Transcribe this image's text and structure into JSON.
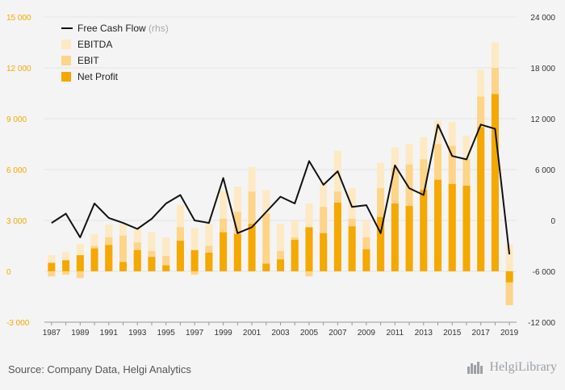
{
  "chart_data": {
    "type": "bar",
    "categories": [
      "1987",
      "1988",
      "1989",
      "1990",
      "1991",
      "1992",
      "1993",
      "1994",
      "1995",
      "1996",
      "1997",
      "1998",
      "1999",
      "2000",
      "2001",
      "2002",
      "2003",
      "2004",
      "2005",
      "2006",
      "2007",
      "2008",
      "2009",
      "2010",
      "2011",
      "2012",
      "2013",
      "2014",
      "2015",
      "2016",
      "2017",
      "2018",
      "2019"
    ],
    "x_tick_labels": [
      "1987",
      "1989",
      "1991",
      "1993",
      "1995",
      "1997",
      "1999",
      "2001",
      "2003",
      "2005",
      "2007",
      "2009",
      "2011",
      "2013",
      "2015",
      "2017",
      "2019"
    ],
    "y_left_ticks": [
      "15 000",
      "12 000",
      "9 000",
      "6 000",
      "3 000",
      "0",
      "-3 000"
    ],
    "y_right_ticks": [
      "24 000",
      "18 000",
      "12 000",
      "6 000",
      "0",
      "-6 000",
      "-12 000"
    ],
    "ylim_left": [
      -3000,
      15000
    ],
    "ylim_right": [
      -12000,
      24000
    ],
    "series": [
      {
        "name": "EBITDA",
        "type": "bar",
        "axis": "left",
        "color": "#fde9c4",
        "values": [
          950,
          1150,
          1600,
          2200,
          2750,
          2800,
          2500,
          2300,
          2000,
          3900,
          2550,
          2800,
          4750,
          5000,
          6150,
          4800,
          2800,
          3000,
          4000,
          5200,
          7100,
          4900,
          3000,
          6400,
          7300,
          7500,
          7900,
          8900,
          8800,
          8000,
          11900,
          13500,
          1600
        ]
      },
      {
        "name": "EBIT",
        "type": "bar",
        "axis": "left",
        "color": "#fdd488",
        "values": [
          -300,
          -200,
          -400,
          1500,
          2000,
          2100,
          1700,
          1200,
          900,
          2600,
          -200,
          1500,
          3100,
          3500,
          4700,
          3400,
          1200,
          2000,
          -300,
          3800,
          4700,
          3100,
          2000,
          4900,
          6100,
          6300,
          6600,
          7500,
          7400,
          6600,
          10300,
          12000,
          -2000
        ]
      },
      {
        "name": "Net Profit",
        "type": "bar",
        "axis": "left",
        "color": "#f5a800",
        "values": [
          500,
          650,
          950,
          1350,
          1550,
          550,
          1250,
          850,
          350,
          1800,
          1250,
          1100,
          2300,
          2200,
          2800,
          450,
          700,
          1850,
          2600,
          2250,
          4050,
          2650,
          1300,
          3200,
          4000,
          3850,
          4800,
          5400,
          5150,
          5050,
          8500,
          10450,
          -650
        ]
      },
      {
        "name": "Free Cash Flow",
        "type": "line",
        "axis": "right",
        "color": "#111111",
        "values": [
          -300,
          800,
          -2000,
          2000,
          300,
          -300,
          -1000,
          200,
          2000,
          3000,
          0,
          -300,
          5000,
          -1500,
          -800,
          1000,
          2800,
          2000,
          7000,
          4200,
          5800,
          1600,
          1800,
          -1500,
          6500,
          3800,
          3000,
          11300,
          7600,
          7200,
          11300,
          10800,
          -4000
        ]
      }
    ],
    "legend": {
      "position": "top-left",
      "rhs_note": "(rhs)"
    },
    "grid": true
  },
  "footer": {
    "source": "Source: Company Data, Helgi Analytics",
    "logo_text": "HelgiLibrary"
  }
}
